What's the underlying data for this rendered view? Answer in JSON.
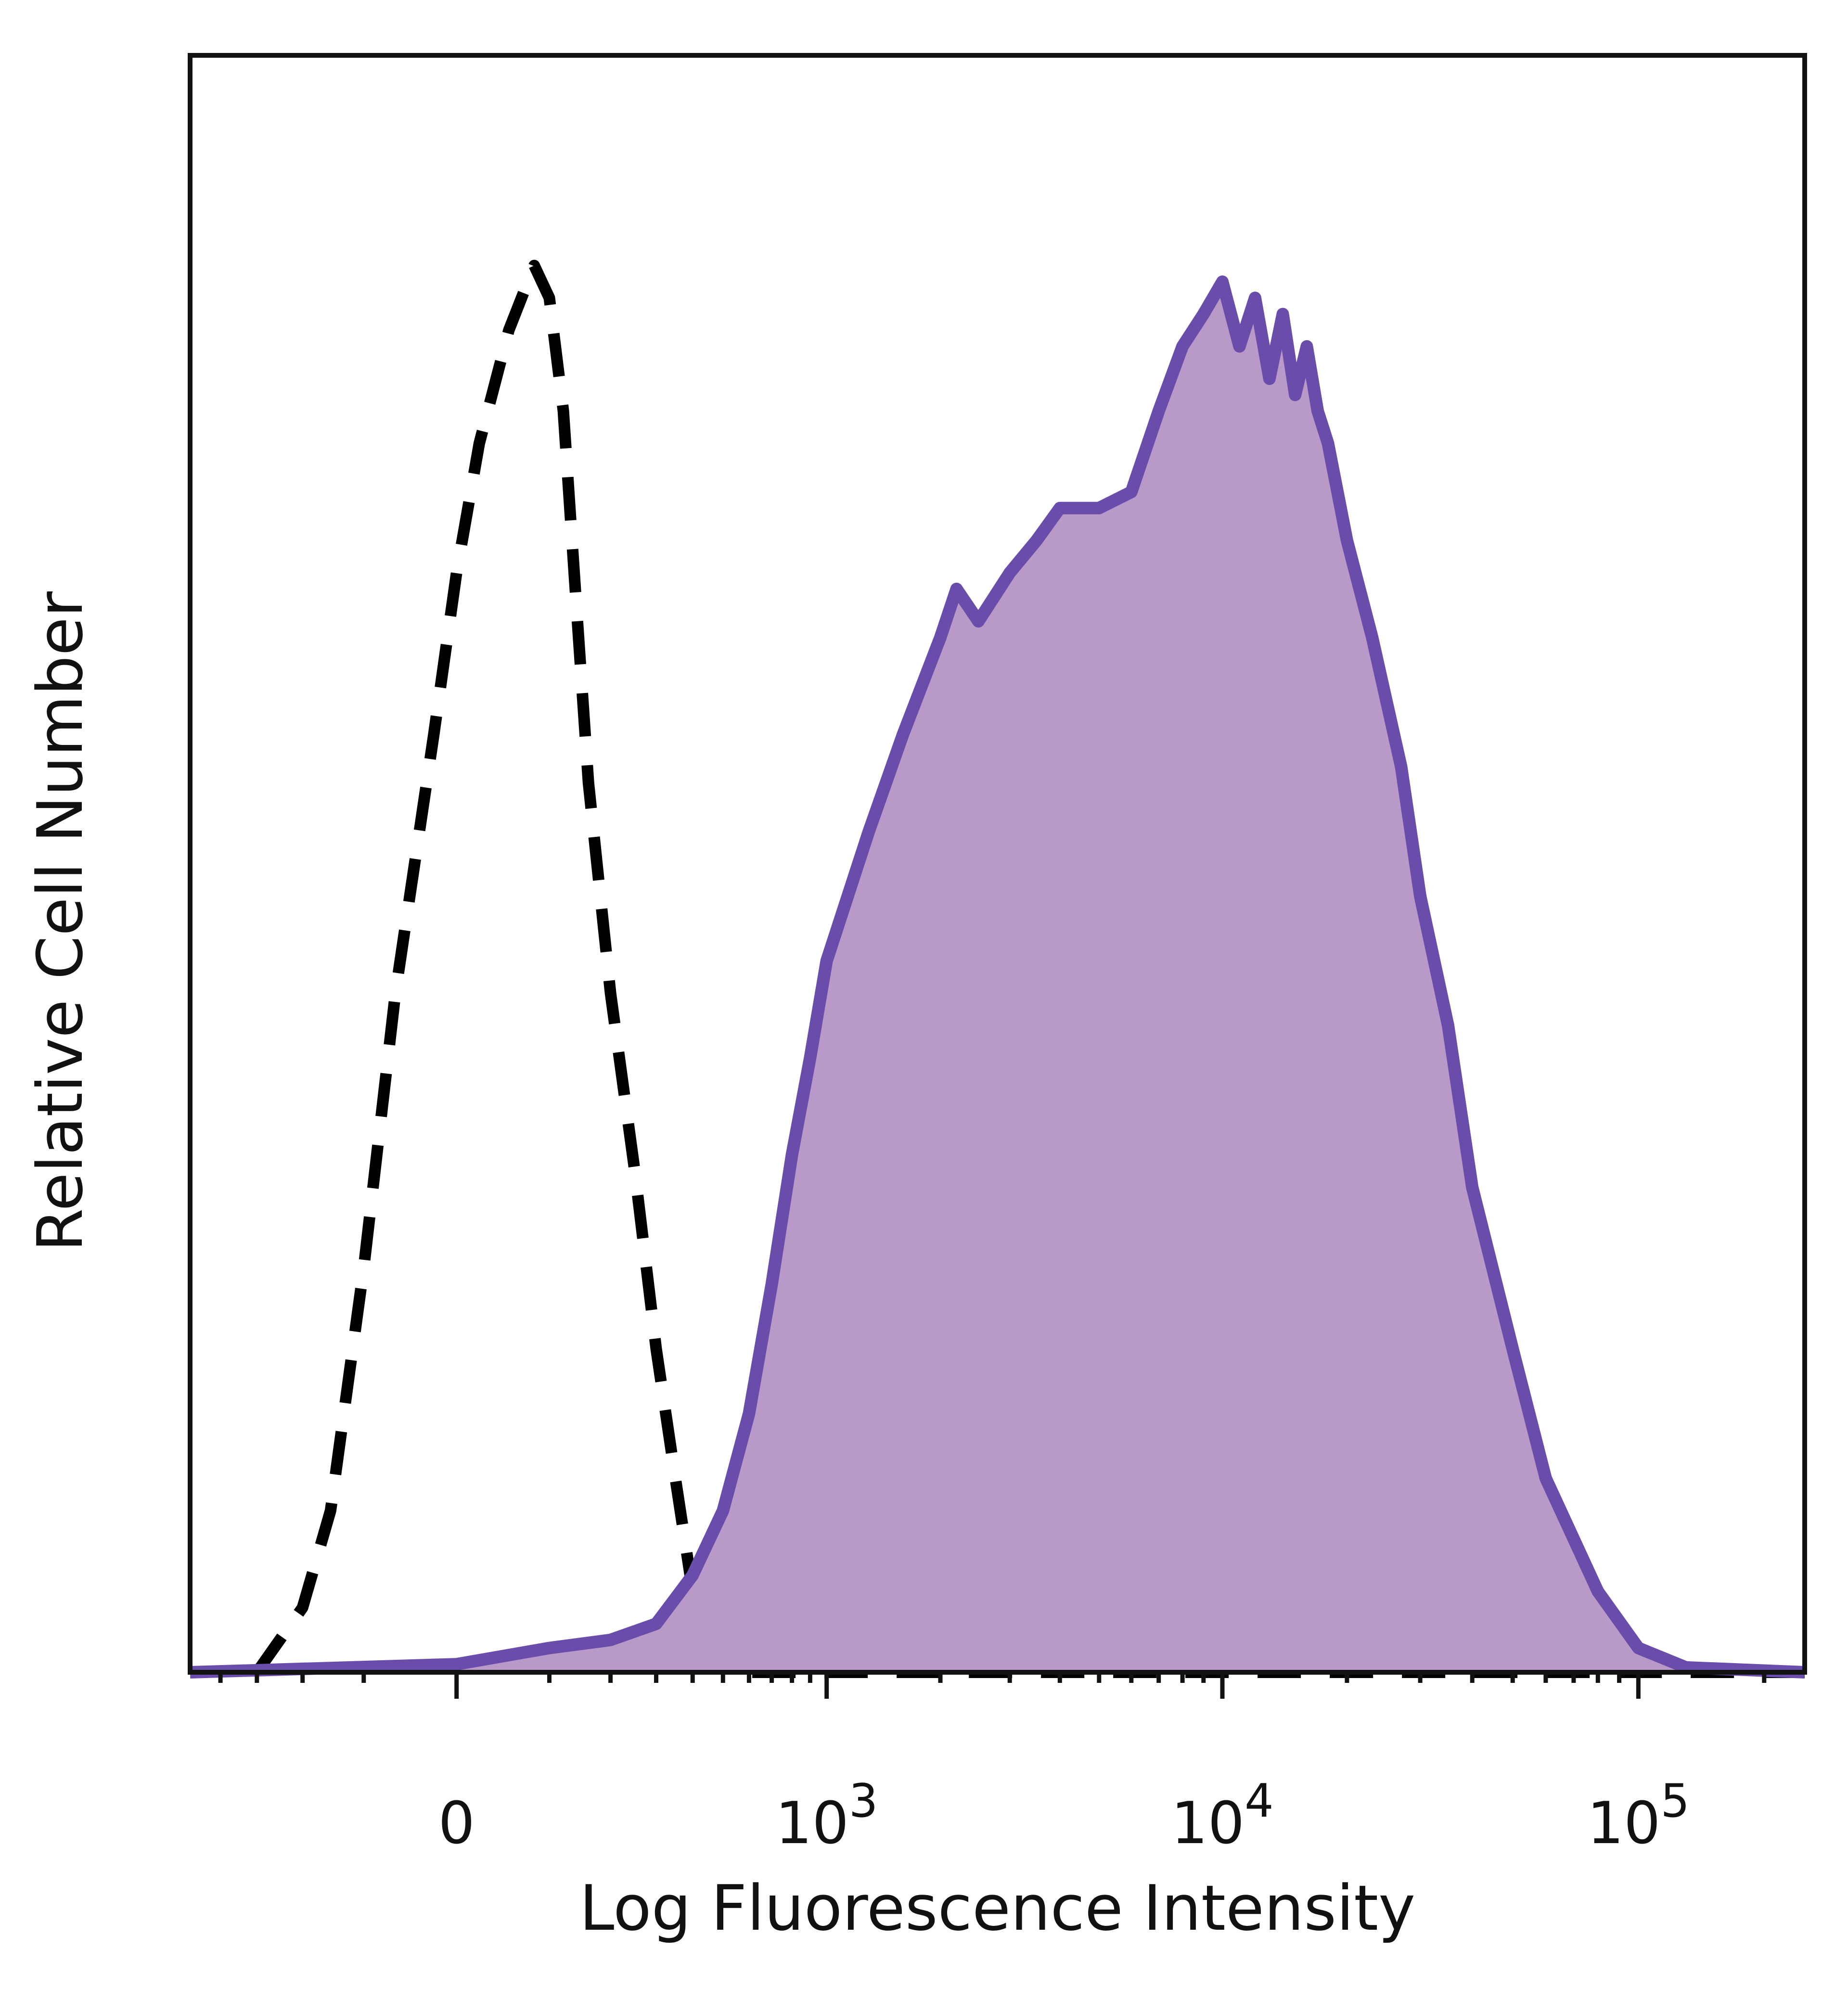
{
  "chart_data": {
    "type": "area",
    "xlabel": "Log Fluorescence Intensity",
    "ylabel": "Relative Cell Number",
    "x_scale": "biexponential",
    "xlim": [
      -500,
      250000
    ],
    "ylim": [
      0,
      100
    ],
    "grid": false,
    "legend": "none",
    "x_ticks": [
      {
        "value": 0,
        "base": "0",
        "exp": ""
      },
      {
        "value": 1000,
        "base": "10",
        "exp": "3"
      },
      {
        "value": 10000,
        "base": "10",
        "exp": "4"
      },
      {
        "value": 100000,
        "base": "10",
        "exp": "5"
      }
    ],
    "series": [
      {
        "style": "dashed",
        "color": "#000000",
        "x": [
          -300,
          -200,
          -150,
          -100,
          -60,
          -20,
          0,
          20,
          50,
          80,
          100,
          120,
          140,
          160,
          200,
          250,
          300,
          350,
          400,
          500,
          600,
          700,
          800,
          900,
          1000,
          2000,
          5000,
          10000,
          100000,
          250000
        ],
        "y": [
          0,
          4,
          10,
          25,
          42,
          58,
          68,
          76,
          83,
          87,
          85,
          78,
          66,
          55,
          42,
          31,
          20,
          12,
          5,
          1,
          0,
          0,
          0,
          0,
          0,
          0,
          0,
          0,
          0,
          0
        ]
      },
      {
        "style": "filled",
        "color": "#6a4caa",
        "fill": "#b899c8",
        "x": [
          -500,
          0,
          100,
          200,
          300,
          400,
          500,
          600,
          700,
          800,
          900,
          1000,
          1300,
          1600,
          2000,
          2200,
          2500,
          3000,
          3500,
          4000,
          5000,
          6000,
          7000,
          8000,
          9000,
          10000,
          11000,
          12000,
          13000,
          14000,
          15000,
          16000,
          17000,
          18000,
          20000,
          23000,
          27000,
          30000,
          35000,
          40000,
          50000,
          60000,
          80000,
          100000,
          130000,
          250000
        ],
        "y": [
          0,
          0.5,
          1.5,
          2,
          3,
          6,
          10,
          16,
          24,
          32,
          38,
          44,
          52,
          58,
          64,
          67,
          65,
          68,
          70,
          72,
          72,
          73,
          78,
          82,
          84,
          86,
          82,
          85,
          80,
          84,
          79,
          82,
          78,
          76,
          70,
          64,
          56,
          48,
          40,
          30,
          20,
          12,
          5,
          1.5,
          0.3,
          0
        ]
      }
    ]
  }
}
